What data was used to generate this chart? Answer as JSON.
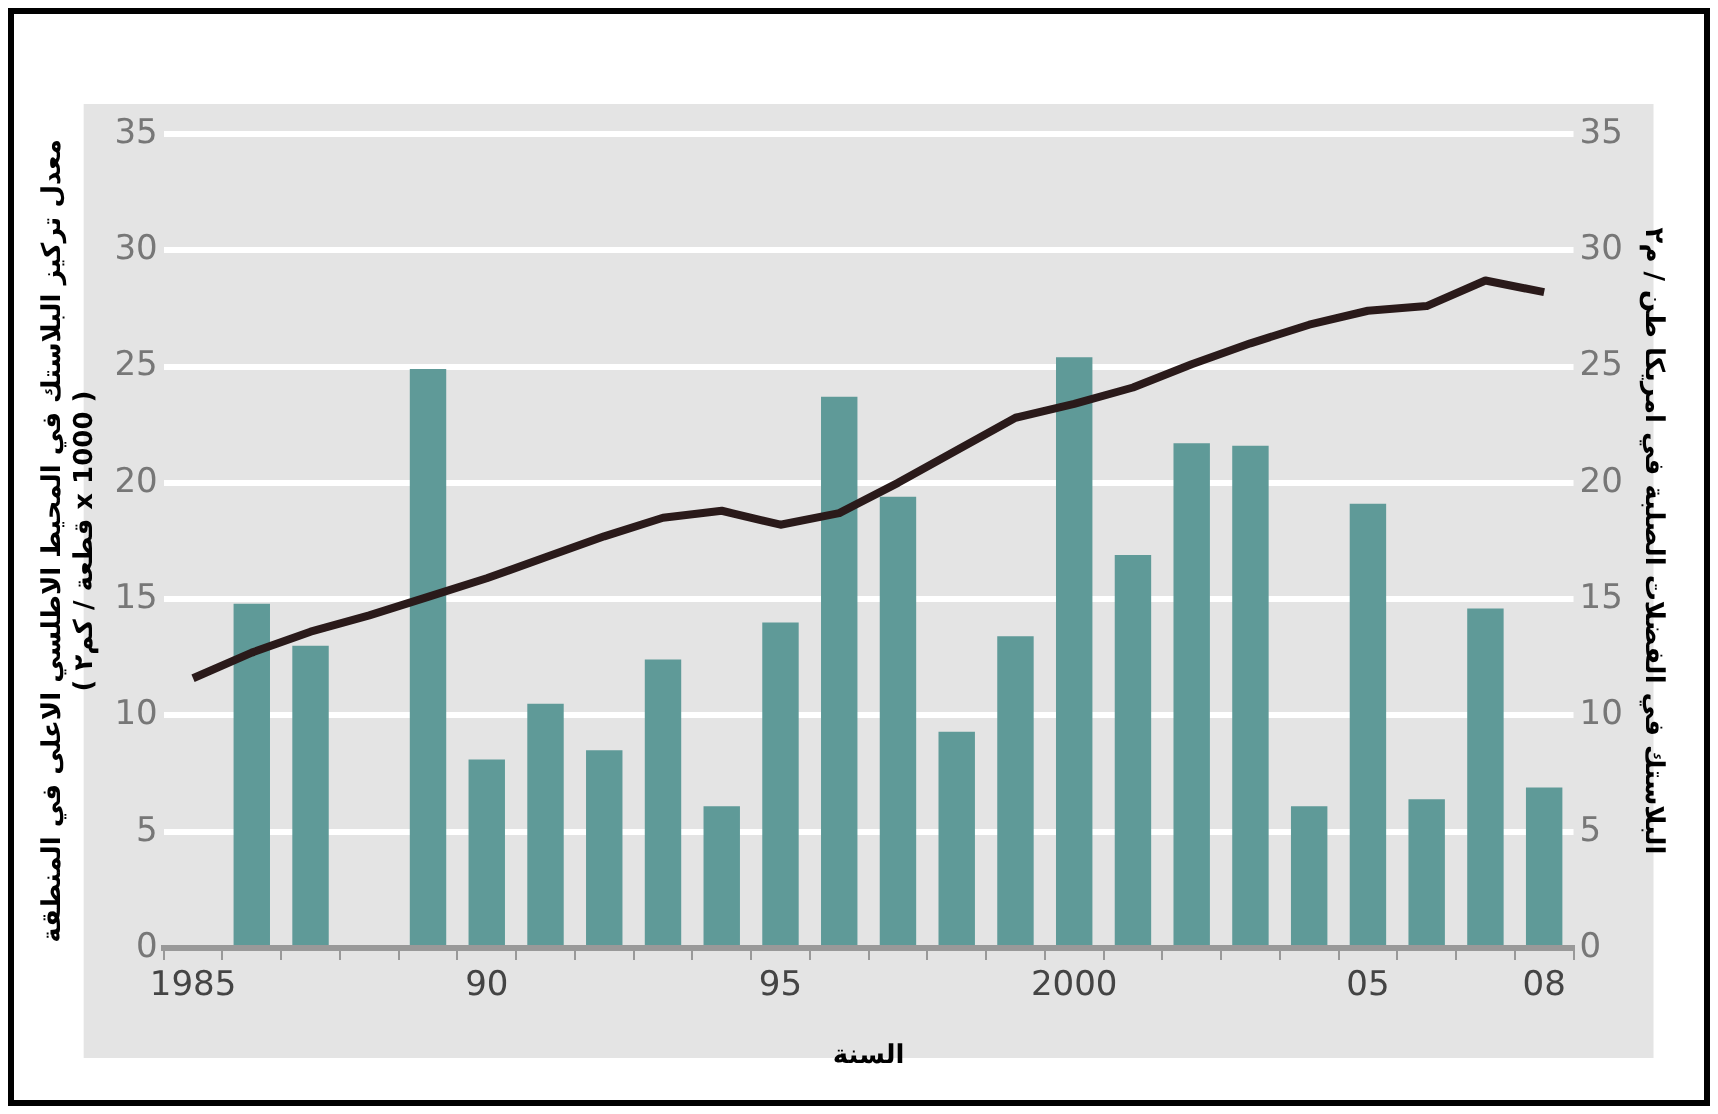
{
  "chart_data": {
    "type": "bar",
    "xlabel": "السنة",
    "ylabel": "معدل تركيز البلاستك في المحيط الاطلسي الاعلى في المنطقة\n( قطعة / كم٢ x 1000 )",
    "y2label": "البلاستك في الفضلات الصلبة في امريكا طن / م٢",
    "categories": [
      "1985",
      null,
      null,
      null,
      null,
      "90",
      null,
      null,
      null,
      null,
      "95",
      null,
      null,
      null,
      null,
      "2000",
      null,
      null,
      null,
      null,
      "05",
      null,
      null,
      "08"
    ],
    "series": [
      {
        "color": "#5f9a98",
        "values": [
          null,
          14.8,
          13.0,
          null,
          24.9,
          8.1,
          10.5,
          8.5,
          12.4,
          6.1,
          14.0,
          23.7,
          19.4,
          9.3,
          13.4,
          25.4,
          16.9,
          21.7,
          21.6,
          6.1,
          19.1,
          6.4,
          14.6,
          6.9
        ]
      },
      {
        "type": "line",
        "color": "#2a1a1a",
        "values": [
          11.6,
          12.7,
          13.6,
          14.3,
          15.1,
          15.9,
          16.8,
          17.7,
          18.5,
          18.8,
          18.2,
          18.7,
          20.0,
          21.4,
          22.8,
          23.4,
          24.1,
          25.1,
          26.0,
          26.8,
          27.4,
          27.6,
          28.7,
          28.2
        ]
      }
    ],
    "ylim": [
      0,
      35
    ],
    "yticks": [
      0,
      5,
      10,
      15,
      20,
      25,
      30,
      35
    ],
    "y2lim": [
      0,
      35
    ],
    "y2ticks": [
      0,
      5,
      10,
      15,
      20,
      25,
      30,
      35
    ],
    "grid": "y",
    "legend": false,
    "marker": "none",
    "line_style": "solid"
  }
}
